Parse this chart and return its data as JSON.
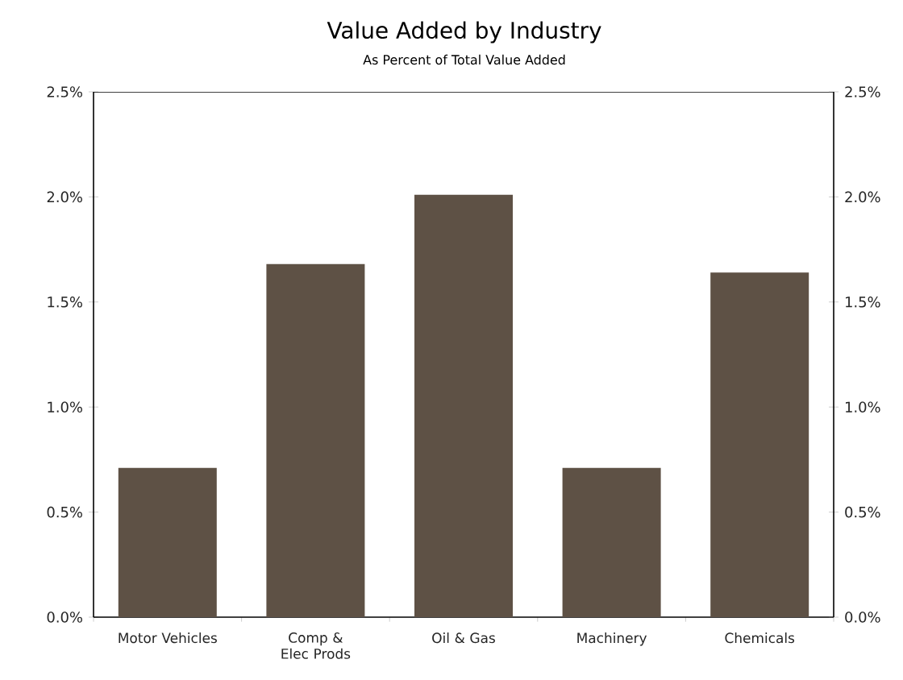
{
  "chart_data": {
    "type": "bar",
    "title": "Value Added by Industry",
    "subtitle": "As Percent of Total Value Added",
    "categories": [
      "Motor Vehicles",
      "Comp & Elec Prods",
      "Oil & Gas",
      "Machinery",
      "Chemicals"
    ],
    "values": [
      0.71,
      1.68,
      2.01,
      0.71,
      1.64
    ],
    "color": "#5e5145",
    "ylim": [
      0,
      2.5
    ],
    "yticks": [
      {
        "value": 0,
        "label": "0.0%"
      },
      {
        "value": 0.5,
        "label": "0.5%"
      },
      {
        "value": 1,
        "label": "1.0%"
      },
      {
        "value": 1.5,
        "label": "1.5%"
      },
      {
        "value": 2,
        "label": "2.0%"
      },
      {
        "value": 2.5,
        "label": "2.5%"
      }
    ],
    "y2lim": [
      0,
      2.5
    ],
    "y2ticks": [
      {
        "value": 0,
        "label": "0.0%"
      },
      {
        "value": 0.5,
        "label": "0.5%"
      },
      {
        "value": 1,
        "label": "1.0%"
      },
      {
        "value": 1.5,
        "label": "1.5%"
      },
      {
        "value": 2,
        "label": "2.0%"
      },
      {
        "value": 2.5,
        "label": "2.5%"
      }
    ]
  }
}
